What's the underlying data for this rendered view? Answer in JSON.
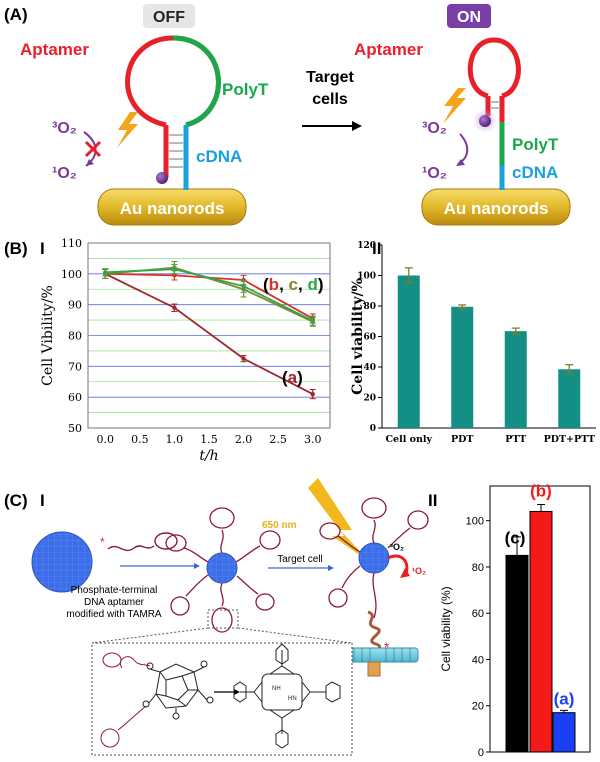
{
  "panelA": {
    "label": "(A)",
    "off_tag": "OFF",
    "on_tag": "ON",
    "aptamer": "Aptamer",
    "polyt": "PolyT",
    "cdna": "cDNA",
    "au": "Au nanorods",
    "target_line1": "Target",
    "target_line2": "cells",
    "triplet": "3O2",
    "singlet": "1O2",
    "colors": {
      "aptamer": "#e8202a",
      "polyt": "#1aa94a",
      "cdna": "#1aa0e0",
      "oxygen": "#7b3a96",
      "gold": "#e3b82a",
      "tag_on": "#7a3fa6",
      "tag_off": "#e6e6e6"
    }
  },
  "panelB": {
    "label": "(B)",
    "part1": "I",
    "part2": "II",
    "chart1": {
      "type": "line",
      "ylabel": "Cell Vibility/%",
      "xlabel": "t/h",
      "x": [
        0.0,
        0.5,
        1.0,
        1.5,
        2.0,
        2.5,
        3.0
      ],
      "xticks": [
        "0.0",
        "0.5",
        "1.0",
        "1.5",
        "2.0",
        "2.5",
        "3.0"
      ],
      "yticks": [
        "50",
        "60",
        "70",
        "80",
        "90",
        "100",
        "110"
      ],
      "ylim": [
        50,
        110
      ],
      "series": [
        {
          "key": "a",
          "color": "#a0262a",
          "x": [
            0,
            1,
            2,
            3
          ],
          "values": [
            100,
            89,
            72.5,
            61
          ],
          "err": [
            1.5,
            1.2,
            1,
            1.5
          ]
        },
        {
          "key": "b",
          "color": "#d8332a",
          "x": [
            0,
            1,
            2,
            3
          ],
          "values": [
            100,
            99.5,
            98,
            85.5
          ],
          "err": [
            1.5,
            1.5,
            1.5,
            1.5
          ]
        },
        {
          "key": "c",
          "color": "#7d8a2a",
          "x": [
            0,
            1,
            2,
            3
          ],
          "values": [
            100,
            102,
            95,
            84.5
          ],
          "err": [
            1.5,
            2,
            2.5,
            1.5
          ]
        },
        {
          "key": "d",
          "color": "#2ea84a",
          "x": [
            0,
            1,
            2,
            3
          ],
          "values": [
            100.5,
            101.5,
            96,
            84.8
          ],
          "err": [
            1.2,
            1.5,
            2,
            1.5
          ]
        }
      ],
      "label_a": {
        "open": "(",
        "key": "a",
        "close": ")"
      },
      "label_bcd": {
        "open": "(",
        "b": "b",
        "sep1": ", ",
        "c": "c",
        "sep2": ", ",
        "d": "d",
        "close": ")"
      }
    },
    "chart2": {
      "type": "bar",
      "ylabel": "Cell viability/%",
      "categories": [
        "Cell only",
        "PDT",
        "PTT",
        "PDT+PTT"
      ],
      "values": [
        100,
        79.5,
        63.5,
        38.5
      ],
      "err": [
        5,
        1.2,
        2,
        3
      ],
      "yticks": [
        "0",
        "20",
        "40",
        "60",
        "80",
        "100",
        "120"
      ],
      "ylim": [
        0,
        120
      ],
      "bar_color": "#148f86"
    }
  },
  "panelC": {
    "label": "(C)",
    "part1": "I",
    "part2": "II",
    "laser": "650 nm",
    "target": "Target cell",
    "desc_line1": "Phosphate-terminal",
    "desc_line2": "DNA aptamer",
    "desc_line3": "modified with TAMRA",
    "triplet": "3O2",
    "singlet": "1O2",
    "chart3": {
      "type": "bar",
      "ylabel": "Cell viability (%)",
      "categories": [
        "c",
        "b",
        "a"
      ],
      "values": [
        85,
        104,
        17
      ],
      "err": [
        8,
        3,
        1
      ],
      "colors": [
        "#000000",
        "#f41a1a",
        "#1a3ff4"
      ],
      "yticks": [
        "0",
        "20",
        "40",
        "60",
        "80",
        "100"
      ],
      "ylim": [
        0,
        115
      ],
      "labels": [
        "(c)",
        "(b)",
        "(a)"
      ]
    }
  }
}
